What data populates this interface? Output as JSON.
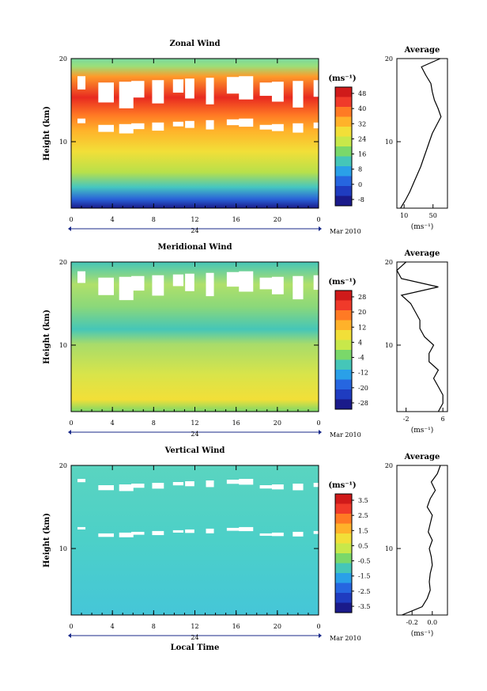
{
  "figure": {
    "xlabel": "Local Time",
    "date_label": "Mar 2010",
    "units": "(ms⁻¹)"
  },
  "chart_data": [
    {
      "type": "heatmap",
      "title": "Zonal Wind",
      "ylabel": "Height (km)",
      "xlabel": "",
      "x_ticks": [
        "0",
        "4",
        "8",
        "12",
        "16",
        "20",
        "0"
      ],
      "y_ticks": [
        "10",
        "20"
      ],
      "ylim": [
        2,
        20
      ],
      "xlim": [
        0,
        24
      ],
      "day_marker": "24",
      "colorbar": {
        "levels": [
          "48",
          "40",
          "32",
          "24",
          "16",
          "8",
          "0",
          "-8"
        ],
        "colors": [
          "#d01a1a",
          "#f03a2a",
          "#ff7a24",
          "#ffb22a",
          "#f2df38",
          "#c8e84a",
          "#7ad86a",
          "#45c6b8",
          "#2aa0e8",
          "#2666e0",
          "#1f3cc0",
          "#1a1a8a"
        ]
      },
      "white_bands": [
        [
          13.5,
          17.5
        ],
        [
          11,
          12.4
        ]
      ],
      "profile": {
        "title": "Average",
        "x_ticks": [
          "10",
          "50"
        ],
        "xlim": [
          0,
          70
        ],
        "xlabel": "(ms⁻¹)",
        "heights": [
          2,
          3,
          4,
          5,
          6,
          7,
          8,
          9,
          10,
          11,
          12,
          13,
          14,
          15,
          16,
          17,
          18,
          19,
          20
        ],
        "values": [
          5,
          12,
          18,
          23,
          28,
          33,
          37,
          41,
          45,
          49,
          55,
          61,
          57,
          52,
          49,
          47,
          40,
          34,
          60
        ]
      }
    },
    {
      "type": "heatmap",
      "title": "Meridional Wind",
      "ylabel": "Height (km)",
      "xlabel": "",
      "x_ticks": [
        "0",
        "4",
        "8",
        "12",
        "16",
        "20",
        "0"
      ],
      "y_ticks": [
        "10",
        "20"
      ],
      "ylim": [
        2,
        20
      ],
      "xlim": [
        0,
        24
      ],
      "day_marker": "24",
      "colorbar": {
        "levels": [
          "28",
          "20",
          "12",
          "4",
          "-4",
          "-12",
          "-20",
          "-28"
        ],
        "colors": [
          "#d01a1a",
          "#f03a2a",
          "#ff7a24",
          "#ffb22a",
          "#f2df38",
          "#c8e84a",
          "#7ad86a",
          "#45c6b8",
          "#2aa0e8",
          "#2666e0",
          "#1f3cc0",
          "#1a1a8a"
        ]
      },
      "white_bands": [
        [
          15,
          18.5
        ]
      ],
      "profile": {
        "title": "Average",
        "x_ticks": [
          "-2",
          "6"
        ],
        "xlim": [
          -4,
          7
        ],
        "xlabel": "(ms⁻¹)",
        "heights": [
          2,
          3,
          4,
          5,
          6,
          7,
          8,
          9,
          10,
          11,
          12,
          13,
          14,
          15,
          16,
          17,
          18,
          19,
          20
        ],
        "values": [
          5,
          6,
          6,
          5,
          4,
          5,
          3,
          3,
          4,
          2,
          1,
          1,
          0,
          -1,
          -3,
          5,
          -3,
          -4,
          -2
        ]
      }
    },
    {
      "type": "heatmap",
      "title": "Vertical Wind",
      "ylabel": "Height (km)",
      "xlabel": "Local Time",
      "x_ticks": [
        "0",
        "4",
        "8",
        "12",
        "16",
        "20",
        "0"
      ],
      "y_ticks": [
        "10",
        "20"
      ],
      "ylim": [
        2,
        20
      ],
      "xlim": [
        0,
        24
      ],
      "day_marker": "24",
      "colorbar": {
        "levels": [
          "3.5",
          "2.5",
          "1.5",
          "0.5",
          "-0.5",
          "-1.5",
          "-2.5",
          "-3.5"
        ],
        "colors": [
          "#d01a1a",
          "#f03a2a",
          "#ff7a24",
          "#ffb22a",
          "#f2df38",
          "#c8e84a",
          "#7ad86a",
          "#45c6b8",
          "#2aa0e8",
          "#2666e0",
          "#1f3cc0",
          "#1a1a8a"
        ]
      },
      "white_bands": [
        [
          17,
          18
        ],
        [
          11.5,
          12.2
        ]
      ],
      "profile": {
        "title": "Average",
        "x_ticks": [
          "-0.2",
          "0.0"
        ],
        "xlim": [
          -0.35,
          0.15
        ],
        "xlabel": "(ms⁻¹)",
        "heights": [
          2,
          3,
          4,
          5,
          6,
          7,
          8,
          9,
          10,
          11,
          12,
          13,
          14,
          15,
          16,
          17,
          18,
          19,
          20
        ],
        "values": [
          -0.3,
          -0.1,
          -0.05,
          -0.02,
          -0.03,
          -0.02,
          0.0,
          -0.01,
          -0.03,
          0.0,
          -0.04,
          -0.02,
          0.0,
          -0.05,
          -0.02,
          0.03,
          -0.01,
          0.05,
          0.08
        ]
      }
    }
  ]
}
